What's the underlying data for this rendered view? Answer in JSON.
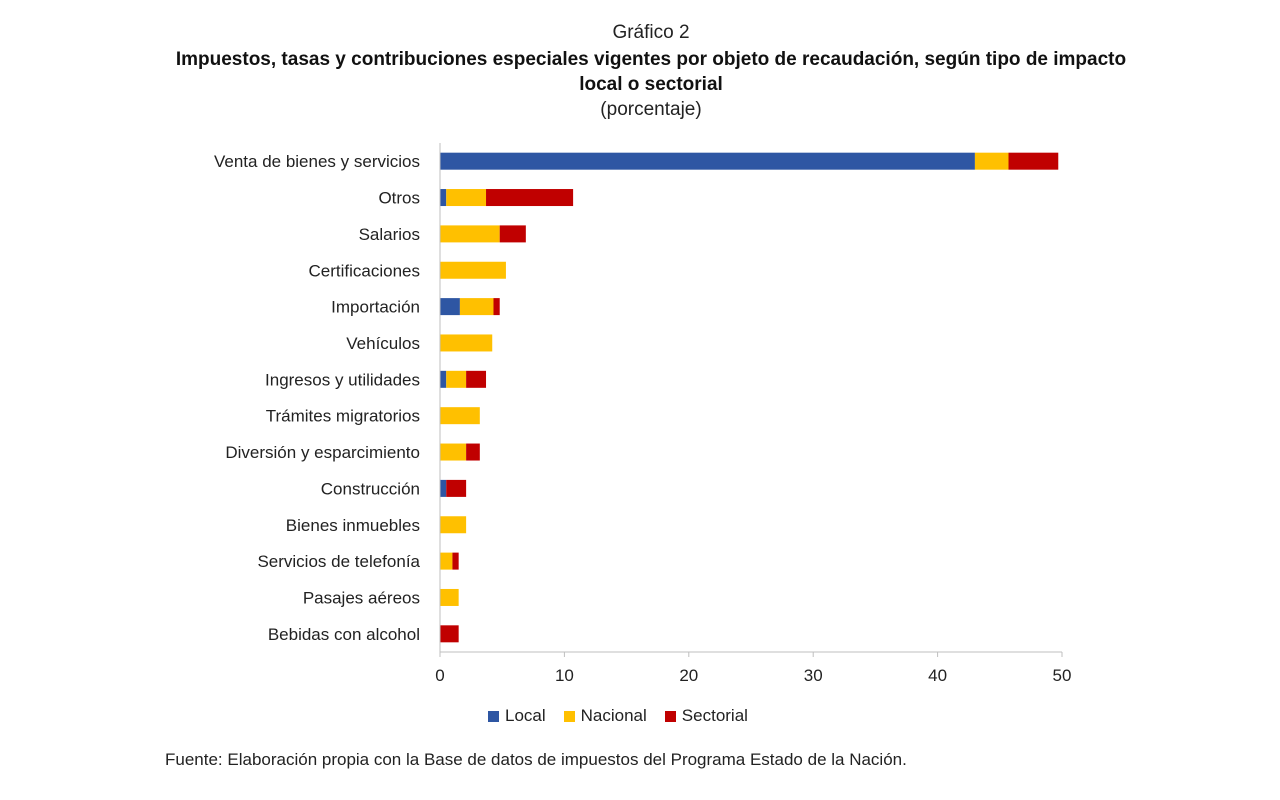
{
  "header": {
    "kicker": "Gráfico 2",
    "title": "Impuestos, tasas y contribuciones especiales vigentes por objeto de recaudación, según tipo de impacto local o sectorial",
    "subtitle": "(porcentaje)"
  },
  "chart_data": {
    "type": "bar",
    "orientation": "horizontal",
    "stacked": true,
    "categories": [
      "Venta de bienes y servicios",
      "Otros",
      "Salarios",
      "Certificaciones",
      "Importación",
      "Vehículos",
      "Ingresos y utilidades",
      "Trámites migratorios",
      "Diversión y esparcimiento",
      "Construcción",
      "Bienes inmuebles",
      "Servicios de telefonía",
      "Pasajes aéreos",
      "Bebidas con alcohol"
    ],
    "series": [
      {
        "name": "Local",
        "color": "#2e56a3",
        "values": [
          43.0,
          0.5,
          0,
          0,
          1.6,
          0,
          0.5,
          0,
          0,
          0.5,
          0,
          0,
          0,
          0
        ]
      },
      {
        "name": "Nacional",
        "color": "#ffc000",
        "values": [
          2.7,
          3.2,
          4.8,
          5.3,
          2.7,
          4.2,
          1.6,
          3.2,
          2.1,
          0,
          2.1,
          1.0,
          1.5,
          0
        ]
      },
      {
        "name": "Sectorial",
        "color": "#c00000",
        "values": [
          4.0,
          7.0,
          2.1,
          0,
          0.5,
          0,
          1.6,
          0,
          1.1,
          1.6,
          0,
          0.5,
          0,
          1.5
        ]
      }
    ],
    "xlim": [
      0,
      50
    ],
    "xticks": [
      0,
      10,
      20,
      30,
      40,
      50
    ],
    "grid": false,
    "legend_position": "bottom"
  },
  "legend": {
    "items": [
      {
        "label": "Local",
        "color": "#2e56a3"
      },
      {
        "label": "Nacional",
        "color": "#ffc000"
      },
      {
        "label": "Sectorial",
        "color": "#c00000"
      }
    ]
  },
  "footer": {
    "source": "Fuente: Elaboración propia con la Base de datos de impuestos del Programa Estado de la Nación."
  }
}
